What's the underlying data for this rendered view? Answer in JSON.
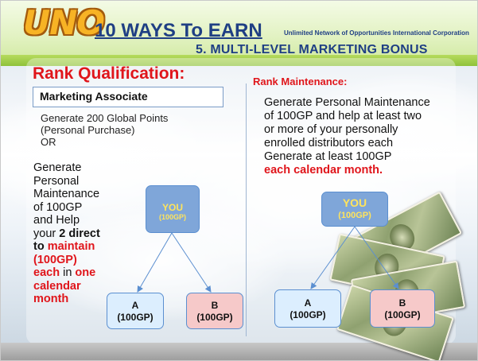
{
  "header": {
    "logo_text": "UNO",
    "title": "10 WAYS To EARN",
    "corporation": "Unlimited Network of Opportunities International Corporation",
    "subtitle": "5. MULTI-LEVEL MARKETING  BONUS"
  },
  "left": {
    "title": "Rank Qualification:",
    "rank_box": "Marketing Associate",
    "requirement_lines": [
      "Generate  200 Global Points",
      "(Personal Purchase)",
      "OR"
    ],
    "para": {
      "l1": "Generate",
      "l2": "Personal",
      "l3": "Maintenance",
      "l4": "of  100GP",
      "l5": "and Help",
      "l6a": "your ",
      "l6b": "2 direct",
      "l7a": "to ",
      "l7b": "maintain",
      "l8": "(100GP)",
      "l9a": "each",
      "l9b": " in ",
      "l9c": "one",
      "l10": "calendar",
      "l11": "month"
    },
    "diagram": {
      "you": {
        "name": "YOU",
        "value": "(100GP)"
      },
      "a": {
        "name": "A",
        "value": "(100GP)"
      },
      "b": {
        "name": "B",
        "value": "(100GP)"
      }
    }
  },
  "right": {
    "title": "Rank Maintenance:",
    "lines": [
      "Generate Personal Maintenance",
      "of  100GP and help at least two",
      "or more of your personally",
      "enrolled distributors each",
      "Generate at least 100GP"
    ],
    "highlight": "each calendar month.",
    "diagram": {
      "you": {
        "name": "YOU",
        "value": "(100GP)"
      },
      "a": {
        "name": "A",
        "value": "(100GP)"
      },
      "b": {
        "name": "B",
        "value": "(100GP)"
      }
    }
  },
  "colors": {
    "title_blue": "#1f3f84",
    "accent_red": "#e0151b",
    "you_box": "#7fa6d9",
    "you_text": "#ffe45c",
    "a_box": "#dceefe",
    "b_box": "#f6c9c9",
    "header_green": "#8fc23a"
  },
  "icons": [
    "money-bills-image"
  ]
}
